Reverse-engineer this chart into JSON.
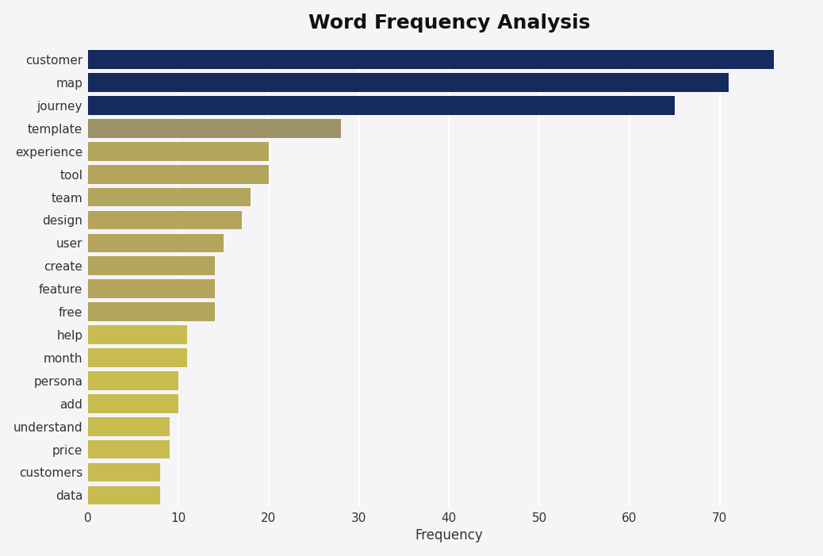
{
  "title": "Word Frequency Analysis",
  "xlabel": "Frequency",
  "categories": [
    "customer",
    "map",
    "journey",
    "template",
    "experience",
    "tool",
    "team",
    "design",
    "user",
    "create",
    "feature",
    "free",
    "help",
    "month",
    "persona",
    "add",
    "understand",
    "price",
    "customers",
    "data"
  ],
  "values": [
    76,
    71,
    65,
    28,
    20,
    20,
    18,
    17,
    15,
    14,
    14,
    14,
    11,
    11,
    10,
    10,
    9,
    9,
    8,
    8
  ],
  "bar_colors": [
    "#152b5e",
    "#152b5e",
    "#152b5e",
    "#9e9268",
    "#b3a55c",
    "#b3a55c",
    "#b3a55c",
    "#b3a55c",
    "#b3a55c",
    "#b3a55c",
    "#b3a55c",
    "#b3a55c",
    "#c8bc50",
    "#c8bc50",
    "#c8bc50",
    "#c8bc50",
    "#c8bc50",
    "#c8bc50",
    "#c8bc50",
    "#c8bc50"
  ],
  "plot_bg_color": "#f5f5f8",
  "fig_bg_color": "#f5f5f8",
  "xlim": [
    0,
    80
  ],
  "xticks": [
    0,
    10,
    20,
    30,
    40,
    50,
    60,
    70
  ],
  "title_fontsize": 18,
  "label_fontsize": 12,
  "tick_fontsize": 11,
  "bar_height": 0.82,
  "grid_color": "#ffffff",
  "grid_linewidth": 1.5,
  "label_color": "#333333"
}
